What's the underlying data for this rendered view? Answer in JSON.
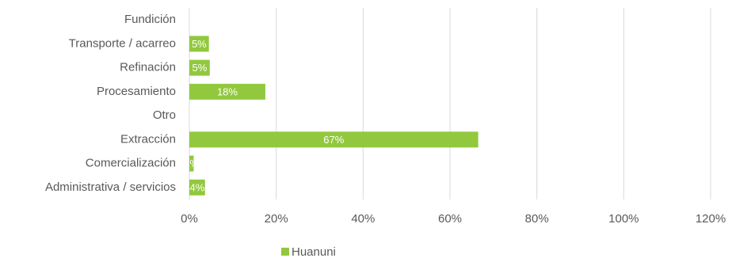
{
  "chart_data": {
    "type": "bar",
    "orientation": "horizontal",
    "categories": [
      "Fundición",
      "Transporte / acarreo",
      "Refinación",
      "Procesamiento",
      "Otro",
      "Extracción",
      "Comercialización",
      "Administrativa / servicios"
    ],
    "series": [
      {
        "name": "Huanuni",
        "color": "#92c83e",
        "values": [
          0,
          4.5,
          4.7,
          17.5,
          0,
          66.5,
          1,
          3.6
        ],
        "value_labels": [
          null,
          "5%",
          "5%",
          "18%",
          null,
          "67%",
          "1%",
          "4%"
        ]
      }
    ],
    "xlim": [
      0,
      120
    ],
    "xticks": [
      {
        "value": 0,
        "label": "0%"
      },
      {
        "value": 20,
        "label": "20%"
      },
      {
        "value": 40,
        "label": "40%"
      },
      {
        "value": 60,
        "label": "60%"
      },
      {
        "value": 80,
        "label": "80%"
      },
      {
        "value": 100,
        "label": "100%"
      },
      {
        "value": 120,
        "label": "120%"
      }
    ],
    "grid": true,
    "legend": "bottom"
  }
}
